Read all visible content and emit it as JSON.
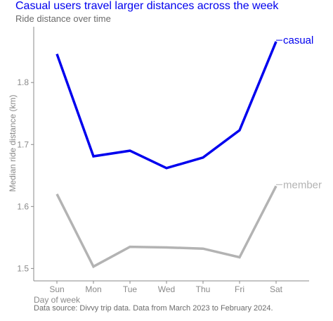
{
  "chart_data": {
    "type": "line",
    "title": "Casual users travel larger distances across the week",
    "subtitle": "Ride distance over time",
    "caption": "Data source: Divvy trip data. Data from March 2023 to February 2024.",
    "xlabel": "Day of week",
    "ylabel": "Median ride distance (km)",
    "categories": [
      "Sun",
      "Mon",
      "Tue",
      "Wed",
      "Thu",
      "Fri",
      "Sat"
    ],
    "ylim": [
      1.48,
      1.89
    ],
    "yticks": [
      1.5,
      1.6,
      1.7,
      1.8
    ],
    "grid": false,
    "legend": "direct labels at line ends",
    "series": [
      {
        "name": "casual",
        "color": "#0000ee",
        "values": [
          1.846,
          1.681,
          1.69,
          1.662,
          1.679,
          1.723,
          1.866
        ]
      },
      {
        "name": "member",
        "color": "#b3b3b3",
        "values": [
          1.62,
          1.503,
          1.535,
          1.534,
          1.532,
          1.518,
          1.633
        ]
      }
    ]
  },
  "colors": {
    "title": "#0000ee",
    "text_muted": "#6b6b6b",
    "axis": "#8a8a8a"
  }
}
